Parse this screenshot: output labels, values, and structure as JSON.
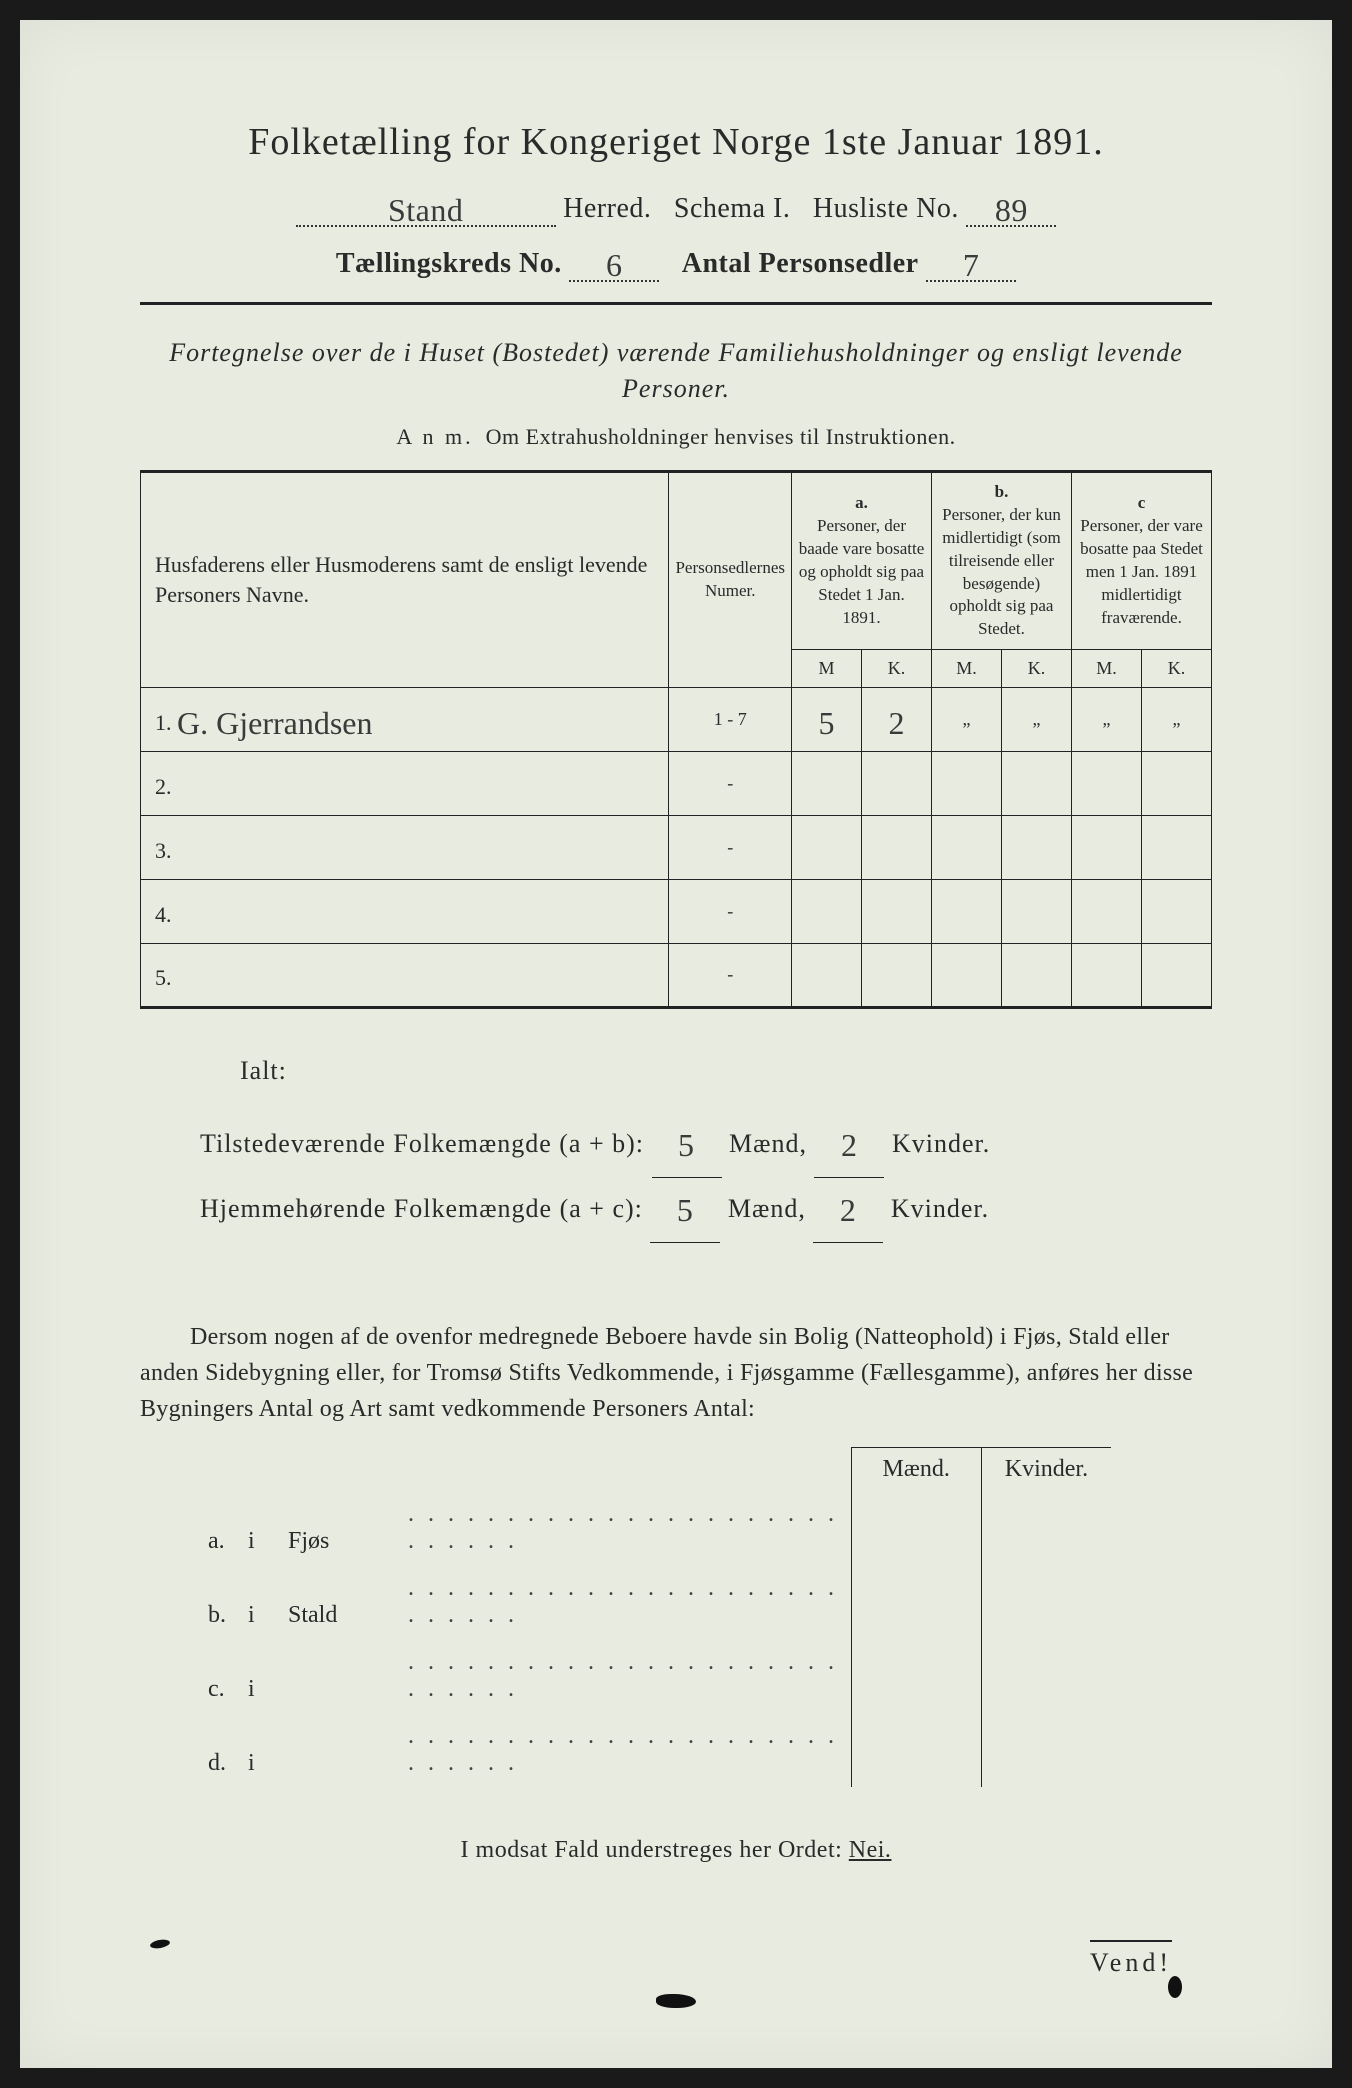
{
  "title": "Folketælling for Kongeriget Norge 1ste Januar 1891.",
  "header": {
    "herred_value": "Stand",
    "herred_label": "Herred.",
    "schema_label": "Schema I.",
    "husliste_label": "Husliste No.",
    "husliste_value": "89",
    "kreds_label": "Tællingskreds No.",
    "kreds_value": "6",
    "antal_label": "Antal Personsedler",
    "antal_value": "7"
  },
  "subhead": "Fortegnelse over de i Huset (Bostedet) værende Familiehusholdninger og ensligt levende Personer.",
  "anm_label": "A n m.",
  "anm_text": "Om Extrahusholdninger henvises til Instruktionen.",
  "table": {
    "col1": "Husfaderens eller Husmoderens samt de ensligt levende Personers Navne.",
    "col2": "Personsedlernes Numer.",
    "col_a_hd": "a.",
    "col_a": "Personer, der baade vare bosatte og opholdt sig paa Stedet 1 Jan. 1891.",
    "col_b_hd": "b.",
    "col_b": "Personer, der kun midlertidigt (som tilreisende eller besøgende) opholdt sig paa Stedet.",
    "col_c_hd": "c",
    "col_c": "Personer, der vare bosatte paa Stedet men 1 Jan. 1891 midlertidigt fraværende.",
    "M": "M",
    "K": "K.",
    "M2": "M.",
    "rows": [
      {
        "n": "1.",
        "name": "G. Gjerrandsen",
        "num": "1 - 7",
        "aM": "5",
        "aK": "2",
        "bM": "„",
        "bK": "„",
        "cM": "„",
        "cK": "„"
      },
      {
        "n": "2.",
        "name": "",
        "num": "-",
        "aM": "",
        "aK": "",
        "bM": "",
        "bK": "",
        "cM": "",
        "cK": ""
      },
      {
        "n": "3.",
        "name": "",
        "num": "-",
        "aM": "",
        "aK": "",
        "bM": "",
        "bK": "",
        "cM": "",
        "cK": ""
      },
      {
        "n": "4.",
        "name": "",
        "num": "-",
        "aM": "",
        "aK": "",
        "bM": "",
        "bK": "",
        "cM": "",
        "cK": ""
      },
      {
        "n": "5.",
        "name": "",
        "num": "-",
        "aM": "",
        "aK": "",
        "bM": "",
        "bK": "",
        "cM": "",
        "cK": ""
      }
    ]
  },
  "totals": {
    "ialt": "Ialt:",
    "line1_label": "Tilstedeværende Folkemængde (a + b):",
    "line1_m": "5",
    "maend": "Mænd,",
    "line1_k": "2",
    "kvinder": "Kvinder.",
    "line2_label": "Hjemmehørende Folkemængde (a + c):",
    "line2_m": "5",
    "line2_k": "2"
  },
  "para": "Dersom nogen af de ovenfor medregnede Beboere havde sin Bolig (Natteophold) i Fjøs, Stald eller anden Sidebygning eller, for Tromsø Stifts Vedkommende, i Fjøsgamme (Fællesgamme), anføres her disse Bygningers Antal og Art samt vedkommende Personers Antal:",
  "sub": {
    "h1": "Mænd.",
    "h2": "Kvinder.",
    "rows": [
      {
        "lab": "a.",
        "i": "i",
        "word": "Fjøs"
      },
      {
        "lab": "b.",
        "i": "i",
        "word": "Stald"
      },
      {
        "lab": "c.",
        "i": "i",
        "word": ""
      },
      {
        "lab": "d.",
        "i": "i",
        "word": ""
      }
    ]
  },
  "nei_pre": "I modsat Fald understreges her Ordet:",
  "nei": "Nei.",
  "vend": "Vend!",
  "colors": {
    "paper": "#e8ebe0",
    "ink": "#2a2a2a",
    "line": "#222222"
  }
}
